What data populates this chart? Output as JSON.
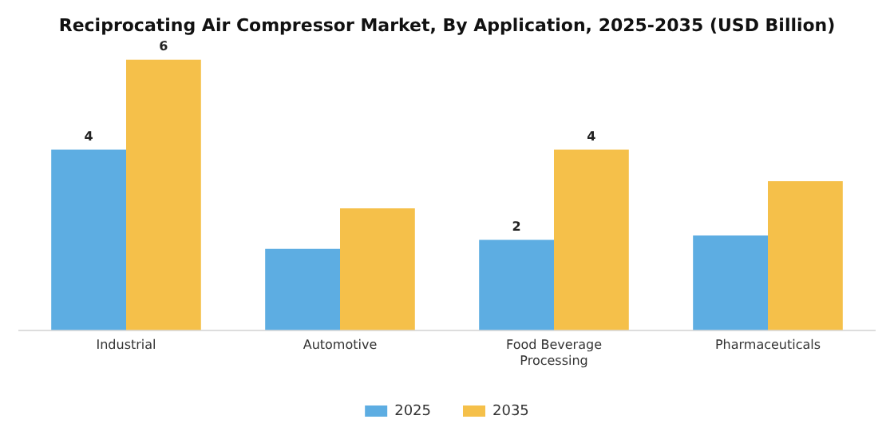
{
  "chart_data": {
    "type": "bar",
    "title": "Reciprocating Air Compressor Market, By Application, 2025-2035 (USD Billion)",
    "categories": [
      "Industrial",
      "Automotive",
      "Food Beverage Processing",
      "Pharmaceuticals"
    ],
    "series": [
      {
        "name": "2025",
        "color": "#5dade2",
        "values": [
          4,
          1.8,
          2,
          2.1
        ],
        "value_labels": [
          "4",
          null,
          "2",
          null
        ]
      },
      {
        "name": "2035",
        "color": "#f5c04a",
        "values": [
          6,
          2.7,
          4,
          3.3
        ],
        "value_labels": [
          "6",
          null,
          "4",
          null
        ]
      }
    ],
    "legend": "bottom",
    "grid": false
  }
}
